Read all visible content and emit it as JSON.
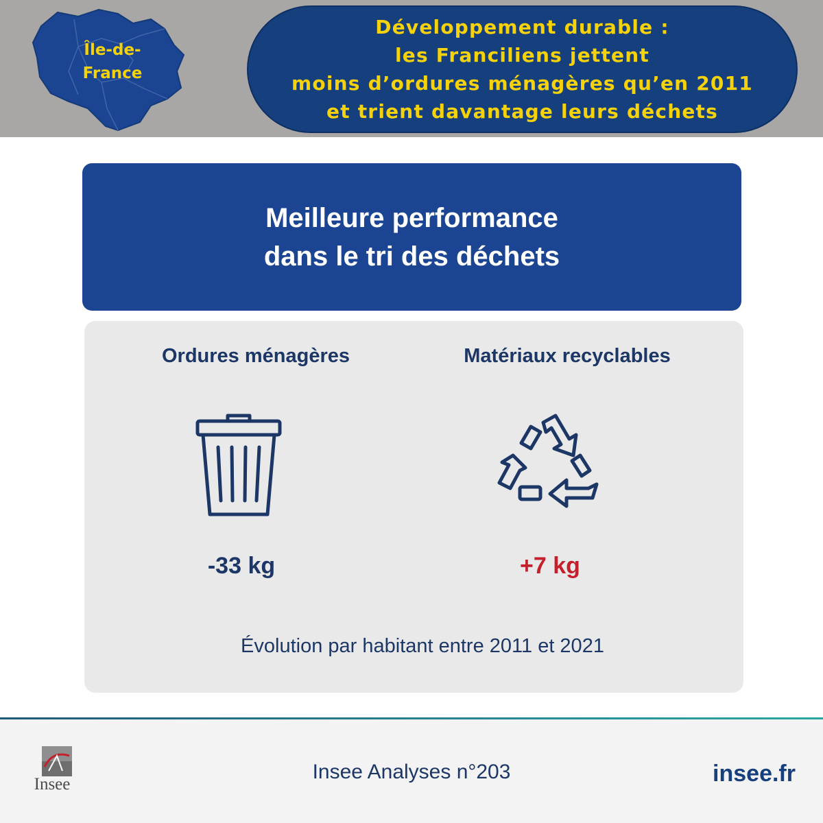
{
  "header": {
    "region_label": [
      "Île-de-",
      "France"
    ],
    "title_lines": [
      "Développement durable :",
      "les Franciliens jettent",
      "moins d’ordures ménagères qu’en 2011",
      "et trient davantage leurs déchets"
    ]
  },
  "headline": {
    "lines": [
      "Meilleure performance",
      "dans le tri des déchets"
    ]
  },
  "panel": {
    "household_waste": {
      "title": "Ordures ménagères",
      "icon": "trash-bin-icon",
      "value": "-33 kg"
    },
    "recyclables": {
      "title": "Matériaux recyclables",
      "icon": "recycle-icon",
      "value": "+7 kg"
    },
    "footnote": "Évolution par habitant entre 2011 et 2021"
  },
  "footer": {
    "logo_text": "Insee",
    "publication": "Insee Analyses n°203",
    "site": "insee.fr"
  },
  "colors": {
    "header_band": "#a8a7a6",
    "navy": "#163f7d",
    "headline_blue": "#1b4592",
    "yellow": "#f5d20a",
    "text_navy": "#1c3766",
    "positive_red": "#c51f2c",
    "panel_grey": "#e9e9e9"
  }
}
